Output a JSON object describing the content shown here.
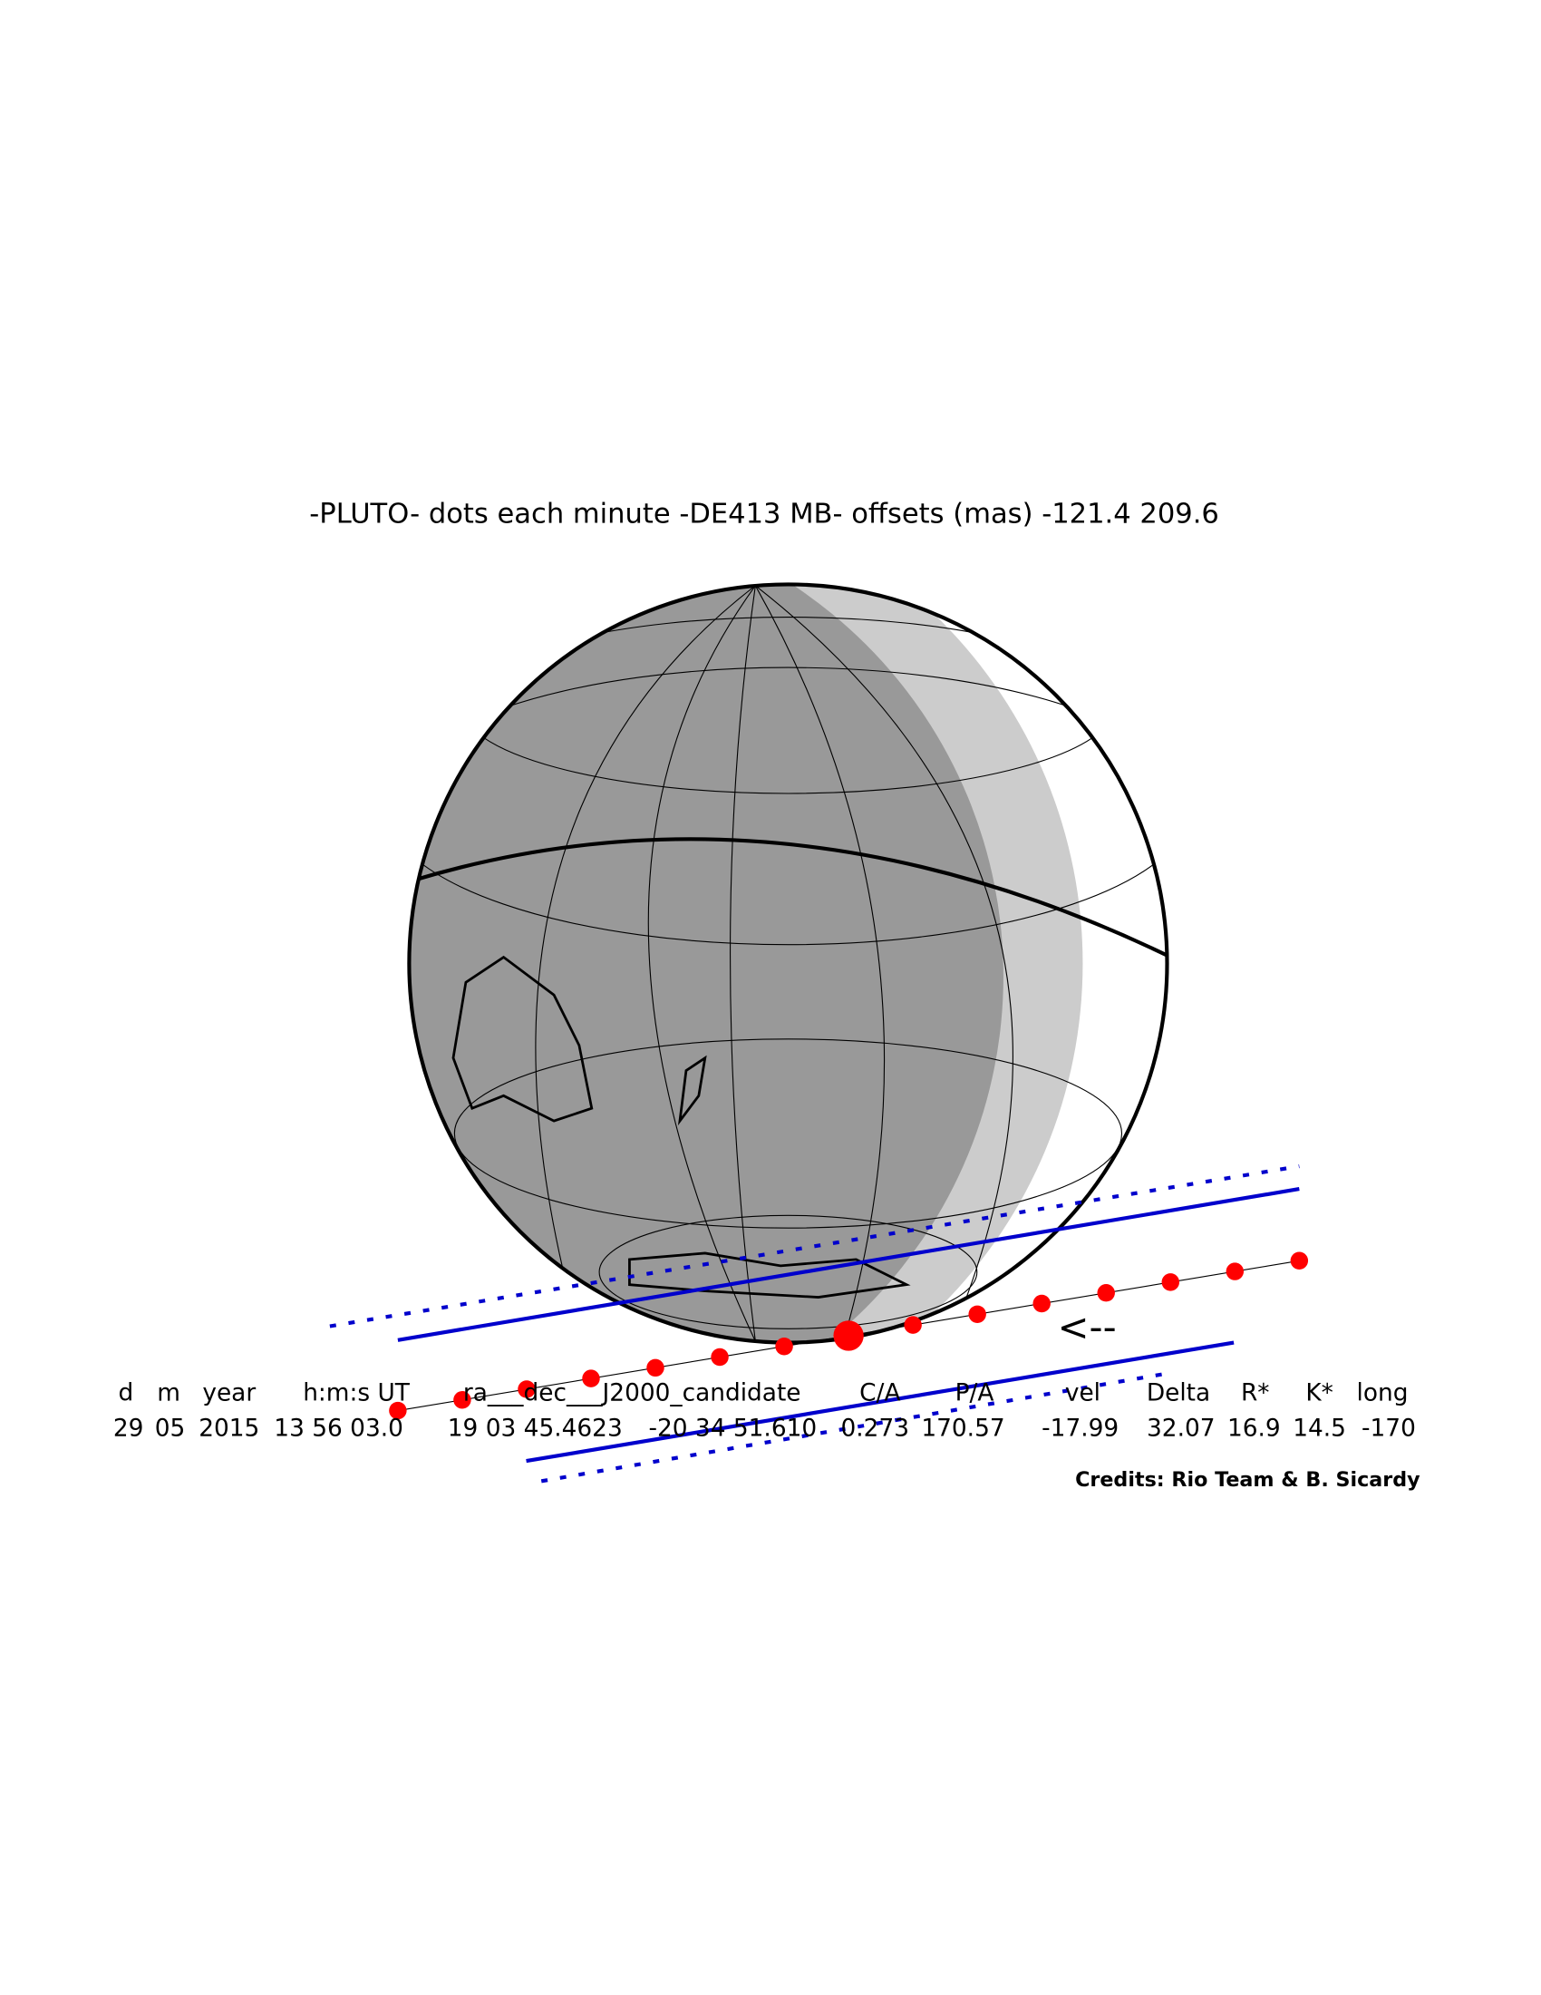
{
  "title": "-PLUTO- dots each minute -DE413 MB- offsets (mas) -121.4  209.6",
  "header_labels": [
    "d",
    "m",
    "year",
    "h:m:s UT",
    "ra___dec___J2000_candidate",
    "C/A",
    "P/A",
    "vel",
    "Delta",
    "R*",
    "K*",
    "long"
  ],
  "row_values": [
    "29",
    "05",
    "2015",
    "13 56 03.0",
    "19 03 45.4623",
    "-20 34 51.610",
    "0.273",
    "170.57",
    "-17.99",
    "32.07",
    "16.9",
    "14.5",
    "-170"
  ],
  "arrow": "<--",
  "credits": "Credits: Rio Team & B. Sicardy"
}
